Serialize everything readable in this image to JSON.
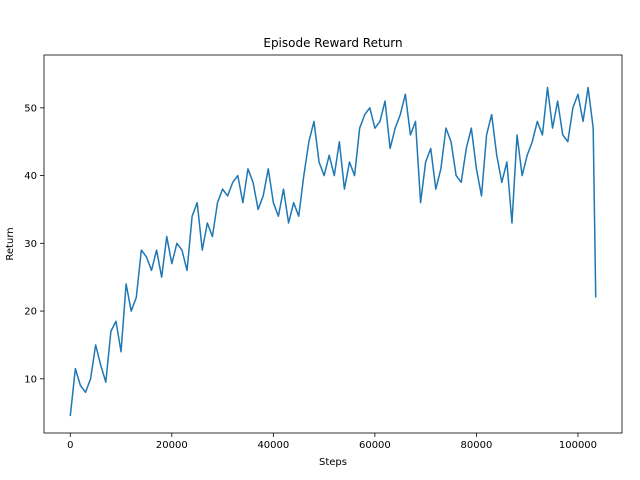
{
  "chart_data": {
    "type": "line",
    "title": "Episode Reward Return",
    "x_label": "Steps",
    "y_label": "Return",
    "x": [
      0,
      1000,
      2000,
      3000,
      4000,
      5000,
      6000,
      7000,
      8000,
      9000,
      10000,
      11000,
      12000,
      13000,
      14000,
      15000,
      16000,
      17000,
      18000,
      19000,
      20000,
      21000,
      22000,
      23000,
      24000,
      25000,
      26000,
      27000,
      28000,
      29000,
      30000,
      31000,
      32000,
      33000,
      34000,
      35000,
      36000,
      37000,
      38000,
      39000,
      40000,
      41000,
      42000,
      43000,
      44000,
      45000,
      46000,
      47000,
      48000,
      49000,
      50000,
      51000,
      52000,
      53000,
      54000,
      55000,
      56000,
      57000,
      58000,
      59000,
      60000,
      61000,
      62000,
      63000,
      64000,
      65000,
      66000,
      67000,
      68000,
      69000,
      70000,
      71000,
      72000,
      73000,
      74000,
      75000,
      76000,
      77000,
      78000,
      79000,
      80000,
      81000,
      82000,
      83000,
      84000,
      85000,
      86000,
      87000,
      88000,
      89000,
      90000,
      91000,
      92000,
      93000,
      94000,
      95000,
      96000,
      97000,
      98000,
      99000,
      100000,
      101000,
      102000,
      103000,
      103500
    ],
    "values": [
      4.5,
      11.5,
      9,
      8,
      10,
      15,
      12,
      9.5,
      17,
      18.5,
      14,
      24,
      20,
      22,
      29,
      28,
      26,
      29,
      25,
      31,
      27,
      30,
      29,
      26,
      34,
      36,
      29,
      33,
      31,
      36,
      38,
      37,
      39,
      40,
      36,
      41,
      39,
      35,
      37,
      41,
      36,
      34,
      38,
      33,
      36,
      34,
      40,
      45,
      48,
      42,
      40,
      43,
      40,
      45,
      38,
      42,
      40,
      47,
      49,
      50,
      47,
      48,
      51,
      44,
      47,
      49,
      52,
      46,
      48,
      36,
      42,
      44,
      38,
      41,
      47,
      45,
      40,
      39,
      44,
      47,
      41,
      37,
      46,
      49,
      43,
      39,
      42,
      33,
      46,
      40,
      43,
      45,
      48,
      46,
      53,
      47,
      51,
      46,
      45,
      50,
      52,
      48,
      53,
      47,
      22
    ],
    "color": "#1f77b4",
    "xlim": [
      -5175,
      108675
    ],
    "ylim": [
      2.0,
      57.8
    ],
    "xticks": [
      0,
      20000,
      40000,
      60000,
      80000,
      100000
    ],
    "yticks": [
      10,
      20,
      30,
      40,
      50
    ]
  }
}
